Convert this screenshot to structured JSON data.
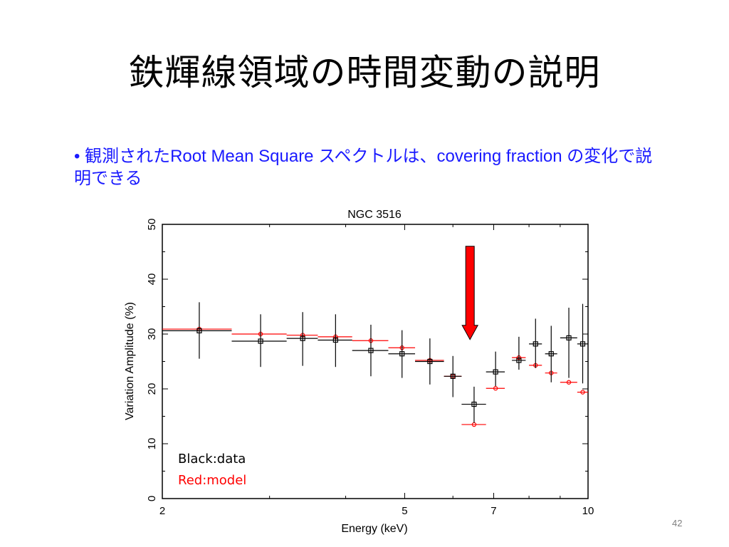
{
  "slide": {
    "title": "鉄輝線領域の時間変動の説明",
    "bullet_marker": "•",
    "bullet_text": "観測されたRoot Mean Square スペクトルは、covering fraction の変化で説明できる",
    "page_number": "42"
  },
  "colors": {
    "bullet_text": "#1a1aff",
    "data": "#000000",
    "model": "#ff0000",
    "arrow_fill": "#ff0000",
    "arrow_stroke": "#000000"
  },
  "chart_data": {
    "type": "scatter",
    "title": "NGC 3516",
    "xlabel": "Energy (keV)",
    "ylabel": "Variation Amplitude (%)",
    "xscale": "log",
    "xlim": [
      2,
      10
    ],
    "ylim": [
      0,
      50
    ],
    "x_tick_labels": [
      "2",
      "5",
      "7",
      "10"
    ],
    "x_ticks": [
      2,
      5,
      7,
      10
    ],
    "x_minor_ticks": [
      3,
      4,
      6,
      8,
      9
    ],
    "y_tick_labels": [
      "0",
      "10",
      "20",
      "30",
      "40",
      "50"
    ],
    "y_ticks": [
      0,
      10,
      20,
      30,
      40,
      50
    ],
    "grid": false,
    "legend": {
      "placement": "bottom-left",
      "entries": [
        {
          "label": "Black:data",
          "color": "#000000"
        },
        {
          "label": "Red:model",
          "color": "#ff0000"
        }
      ]
    },
    "annotation": {
      "type": "arrow",
      "direction": "down",
      "x": 6.4,
      "y_from": 46,
      "y_to": 29
    },
    "series": [
      {
        "name": "data",
        "marker": "square",
        "color": "#000000",
        "points": [
          {
            "x": 2.3,
            "xlo": 2.0,
            "xhi": 2.6,
            "y": 30.6,
            "ylo": 25.5,
            "yhi": 35.8
          },
          {
            "x": 2.9,
            "xlo": 2.6,
            "xhi": 3.2,
            "y": 28.7,
            "ylo": 24.0,
            "yhi": 33.6
          },
          {
            "x": 3.4,
            "xlo": 3.2,
            "xhi": 3.6,
            "y": 29.2,
            "ylo": 24.2,
            "yhi": 34.0
          },
          {
            "x": 3.85,
            "xlo": 3.6,
            "xhi": 4.1,
            "y": 28.9,
            "ylo": 24.0,
            "yhi": 33.6
          },
          {
            "x": 4.4,
            "xlo": 4.1,
            "xhi": 4.7,
            "y": 27.0,
            "ylo": 22.3,
            "yhi": 31.7
          },
          {
            "x": 4.95,
            "xlo": 4.7,
            "xhi": 5.2,
            "y": 26.4,
            "ylo": 22.0,
            "yhi": 30.7
          },
          {
            "x": 5.5,
            "xlo": 5.2,
            "xhi": 5.8,
            "y": 25.0,
            "ylo": 20.8,
            "yhi": 29.2
          },
          {
            "x": 6.0,
            "xlo": 5.8,
            "xhi": 6.2,
            "y": 22.3,
            "ylo": 18.5,
            "yhi": 26.0
          },
          {
            "x": 6.5,
            "xlo": 6.2,
            "xhi": 6.8,
            "y": 17.2,
            "ylo": 13.8,
            "yhi": 20.4
          },
          {
            "x": 7.05,
            "xlo": 6.8,
            "xhi": 7.3,
            "y": 23.1,
            "ylo": 20.5,
            "yhi": 26.8
          },
          {
            "x": 7.7,
            "xlo": 7.5,
            "xhi": 7.9,
            "y": 25.2,
            "ylo": 23.5,
            "yhi": 29.5
          },
          {
            "x": 8.2,
            "xlo": 8.0,
            "xhi": 8.4,
            "y": 28.2,
            "ylo": 23.8,
            "yhi": 32.8
          },
          {
            "x": 8.7,
            "xlo": 8.5,
            "xhi": 8.9,
            "y": 26.4,
            "ylo": 21.2,
            "yhi": 31.5
          },
          {
            "x": 9.3,
            "xlo": 9.0,
            "xhi": 9.6,
            "y": 29.3,
            "ylo": 22.0,
            "yhi": 34.8
          },
          {
            "x": 9.8,
            "xlo": 9.6,
            "xhi": 10.0,
            "y": 28.2,
            "ylo": 21.0,
            "yhi": 35.5
          }
        ]
      },
      {
        "name": "model",
        "marker": "circle",
        "color": "#ff0000",
        "points": [
          {
            "x": 2.3,
            "xlo": 2.0,
            "xhi": 2.6,
            "y": 30.9
          },
          {
            "x": 2.9,
            "xlo": 2.6,
            "xhi": 3.2,
            "y": 30.0
          },
          {
            "x": 3.4,
            "xlo": 3.2,
            "xhi": 3.6,
            "y": 29.8
          },
          {
            "x": 3.85,
            "xlo": 3.6,
            "xhi": 4.1,
            "y": 29.5
          },
          {
            "x": 4.4,
            "xlo": 4.1,
            "xhi": 4.7,
            "y": 28.8
          },
          {
            "x": 4.95,
            "xlo": 4.7,
            "xhi": 5.2,
            "y": 27.5
          },
          {
            "x": 5.5,
            "xlo": 5.2,
            "xhi": 5.8,
            "y": 25.2
          },
          {
            "x": 6.0,
            "xlo": 5.8,
            "xhi": 6.2,
            "y": 22.3
          },
          {
            "x": 6.5,
            "xlo": 6.2,
            "xhi": 6.8,
            "y": 13.5
          },
          {
            "x": 7.05,
            "xlo": 6.8,
            "xhi": 7.3,
            "y": 20.1
          },
          {
            "x": 7.7,
            "xlo": 7.5,
            "xhi": 7.9,
            "y": 25.7
          },
          {
            "x": 8.2,
            "xlo": 8.0,
            "xhi": 8.4,
            "y": 24.3
          },
          {
            "x": 8.7,
            "xlo": 8.5,
            "xhi": 8.9,
            "y": 22.9
          },
          {
            "x": 9.3,
            "xlo": 9.0,
            "xhi": 9.6,
            "y": 21.2
          },
          {
            "x": 9.8,
            "xlo": 9.6,
            "xhi": 10.0,
            "y": 19.4
          }
        ]
      }
    ]
  }
}
